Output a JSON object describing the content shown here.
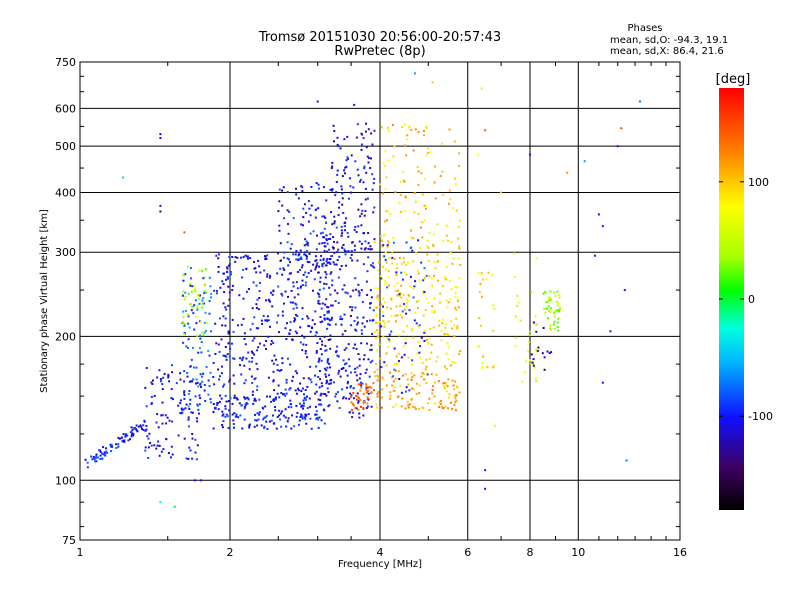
{
  "chart_data": {
    "type": "scatter",
    "title": "Tromsø 20151030 20:56:00-20:57:43",
    "subtitle": "RwPretec (8p)",
    "xlabel": "Frequency [MHz]",
    "ylabel": "Stationary phase Virtual Height [km]",
    "x_scale": "log",
    "y_scale": "log",
    "xlim": [
      1,
      16
    ],
    "ylim": [
      75,
      750
    ],
    "x_ticks": [
      1,
      2,
      4,
      6,
      8,
      10,
      16
    ],
    "x_tick_labels": [
      "1",
      "2",
      "4",
      "6",
      "8",
      "10",
      "16"
    ],
    "y_ticks": [
      75,
      100,
      200,
      300,
      400,
      500,
      600,
      750
    ],
    "y_tick_labels": [
      "75",
      "100",
      "200",
      "300",
      "400",
      "500",
      "600",
      "750"
    ],
    "grid": true,
    "stats": {
      "heading": "Phases",
      "line_o": "mean, sd,O:  -94.3, 19.1",
      "line_x": "mean, sd,X:  86.4, 21.6"
    },
    "colorbar": {
      "label": "[deg]",
      "range": [
        -180,
        180
      ],
      "ticks": [
        100,
        0,
        -100
      ],
      "tick_labels": [
        "100",
        "0",
        "-100"
      ]
    },
    "clusters": [
      {
        "f": [
          1.0,
          1.35
        ],
        "h": [
          103,
          135
        ],
        "phase": -100,
        "n": 80,
        "curve": "rise"
      },
      {
        "f": [
          1.35,
          1.75
        ],
        "h": [
          110,
          175
        ],
        "phase": -105,
        "n": 120
      },
      {
        "f": [
          1.6,
          1.85
        ],
        "h": [
          140,
          285
        ],
        "phase": -80,
        "n": 90
      },
      {
        "f": [
          1.6,
          1.8
        ],
        "h": [
          200,
          280
        ],
        "phase": 40,
        "n": 40
      },
      {
        "f": [
          1.85,
          3.1
        ],
        "h": [
          128,
          150
        ],
        "phase": -100,
        "n": 180
      },
      {
        "f": [
          1.85,
          3.2
        ],
        "h": [
          150,
          300
        ],
        "phase": -105,
        "n": 420
      },
      {
        "f": [
          2.5,
          3.3
        ],
        "h": [
          280,
          420
        ],
        "phase": -100,
        "n": 100
      },
      {
        "f": [
          3.0,
          3.9
        ],
        "h": [
          135,
          330
        ],
        "phase": -105,
        "n": 260
      },
      {
        "f": [
          3.2,
          3.9
        ],
        "h": [
          300,
          560
        ],
        "phase": -110,
        "n": 120
      },
      {
        "f": [
          3.5,
          3.9
        ],
        "h": [
          140,
          160
        ],
        "phase": 140,
        "n": 40
      },
      {
        "f": [
          3.9,
          5.8
        ],
        "h": [
          140,
          170
        ],
        "phase": 110,
        "n": 120
      },
      {
        "f": [
          3.9,
          5.8
        ],
        "h": [
          170,
          330
        ],
        "phase": 90,
        "n": 260
      },
      {
        "f": [
          4.0,
          5.8
        ],
        "h": [
          330,
          560
        ],
        "phase": 100,
        "n": 90
      },
      {
        "f": [
          4.0,
          5.0
        ],
        "h": [
          150,
          320
        ],
        "phase": -95,
        "n": 60
      },
      {
        "f": [
          6.3,
          6.8
        ],
        "h": [
          170,
          280
        ],
        "phase": 90,
        "n": 25
      },
      {
        "f": [
          7.3,
          8.3
        ],
        "h": [
          160,
          300
        ],
        "phase": 60,
        "n": 30
      },
      {
        "f": [
          8.5,
          9.2
        ],
        "h": [
          205,
          250
        ],
        "phase": 40,
        "n": 50
      },
      {
        "f": [
          8.0,
          9.0
        ],
        "h": [
          170,
          220
        ],
        "phase": -130,
        "n": 15
      }
    ],
    "scattered_points": [
      [
        1.45,
        520,
        -100
      ],
      [
        1.45,
        530,
        -110
      ],
      [
        1.45,
        375,
        -100
      ],
      [
        1.45,
        365,
        -140
      ],
      [
        1.62,
        330,
        150
      ],
      [
        1.22,
        430,
        -40
      ],
      [
        1.75,
        100,
        -100
      ],
      [
        1.45,
        90,
        -30
      ],
      [
        1.55,
        88,
        0
      ],
      [
        1.7,
        100,
        -100
      ],
      [
        10.3,
        465,
        -60
      ],
      [
        13.3,
        620,
        -70
      ],
      [
        12.2,
        545,
        150
      ],
      [
        12.0,
        500,
        -100
      ],
      [
        11.0,
        360,
        -100
      ],
      [
        11.2,
        340,
        -100
      ],
      [
        10.8,
        295,
        -100
      ],
      [
        12.4,
        250,
        -100
      ],
      [
        11.6,
        205,
        -100
      ],
      [
        11.2,
        160,
        -100
      ],
      [
        12.5,
        110,
        -70
      ],
      [
        10.5,
        75,
        -100
      ],
      [
        9.5,
        440,
        120
      ],
      [
        8.0,
        480,
        -100
      ],
      [
        6.4,
        660,
        90
      ],
      [
        6.5,
        540,
        140
      ],
      [
        6.3,
        480,
        80
      ],
      [
        6.5,
        105,
        -100
      ],
      [
        6.5,
        96,
        -100
      ],
      [
        6.8,
        130,
        90
      ],
      [
        7.0,
        400,
        100
      ],
      [
        5.1,
        680,
        100
      ],
      [
        4.7,
        710,
        -60
      ],
      [
        3.55,
        610,
        -110
      ],
      [
        3.0,
        620,
        -100
      ]
    ]
  }
}
